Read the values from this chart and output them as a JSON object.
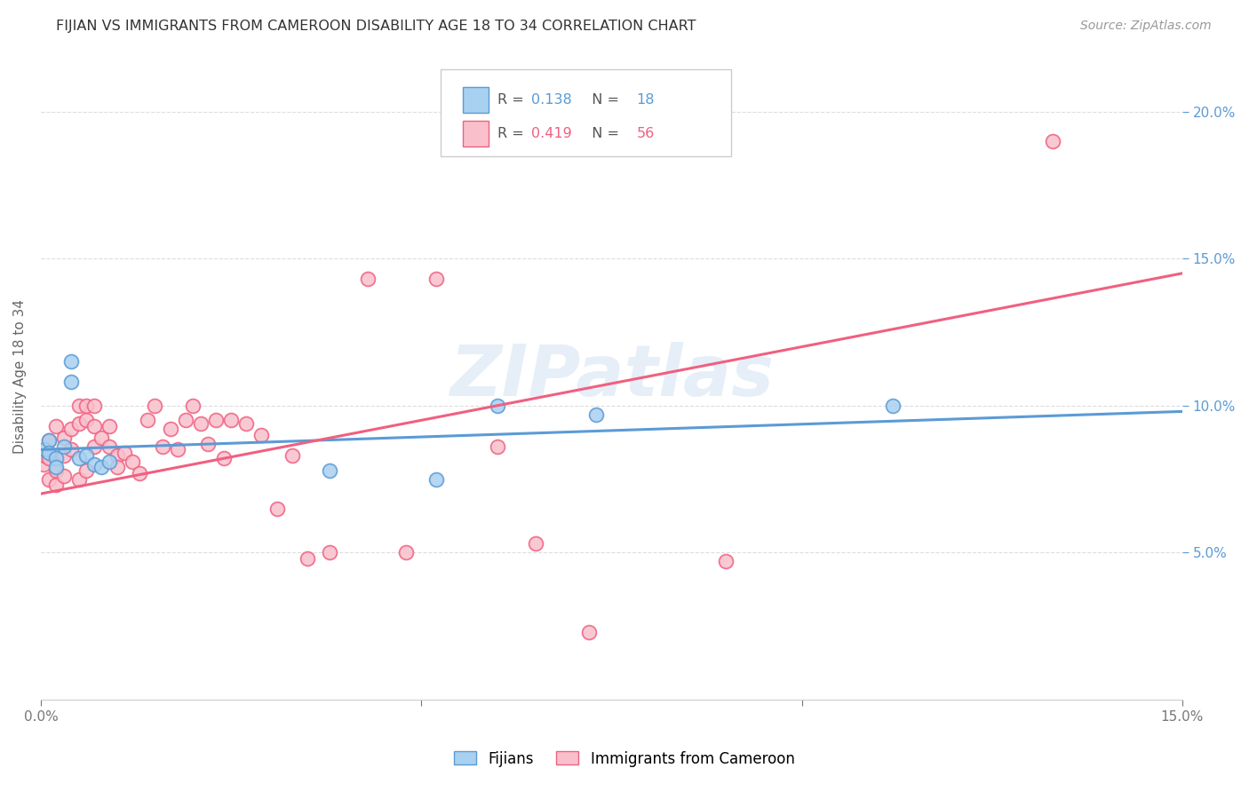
{
  "title": "FIJIAN VS IMMIGRANTS FROM CAMEROON DISABILITY AGE 18 TO 34 CORRELATION CHART",
  "source": "Source: ZipAtlas.com",
  "ylabel": "Disability Age 18 to 34",
  "xlim": [
    0.0,
    0.15
  ],
  "ylim": [
    0.0,
    0.22
  ],
  "color_fijian_fill": "#A8D0F0",
  "color_fijian_edge": "#5B9BD5",
  "color_cameroon_fill": "#F9C0CC",
  "color_cameroon_edge": "#F06080",
  "color_fijian_line": "#5B9BD5",
  "color_cameroon_line": "#F06080",
  "watermark": "ZIPatlas",
  "r_fijian": "0.138",
  "n_fijian": "18",
  "r_cameroon": "0.419",
  "n_cameroon": "56",
  "legend_fijian": "Fijians",
  "legend_cameroon": "Immigrants from Cameroon",
  "fijian_x": [
    0.0005,
    0.001,
    0.001,
    0.002,
    0.002,
    0.003,
    0.004,
    0.004,
    0.005,
    0.006,
    0.007,
    0.008,
    0.009,
    0.038,
    0.052,
    0.06,
    0.073,
    0.112
  ],
  "fijian_y": [
    0.085,
    0.088,
    0.084,
    0.082,
    0.079,
    0.086,
    0.115,
    0.108,
    0.082,
    0.083,
    0.08,
    0.079,
    0.081,
    0.078,
    0.075,
    0.1,
    0.097,
    0.1
  ],
  "cameroon_x": [
    0.0003,
    0.0005,
    0.001,
    0.001,
    0.001,
    0.002,
    0.002,
    0.002,
    0.003,
    0.003,
    0.003,
    0.004,
    0.004,
    0.005,
    0.005,
    0.005,
    0.006,
    0.006,
    0.006,
    0.007,
    0.007,
    0.007,
    0.008,
    0.009,
    0.009,
    0.01,
    0.01,
    0.011,
    0.012,
    0.013,
    0.014,
    0.015,
    0.016,
    0.017,
    0.018,
    0.019,
    0.02,
    0.021,
    0.022,
    0.023,
    0.024,
    0.025,
    0.027,
    0.029,
    0.031,
    0.033,
    0.035,
    0.038,
    0.043,
    0.048,
    0.052,
    0.06,
    0.065,
    0.072,
    0.09,
    0.133
  ],
  "cameroon_y": [
    0.08,
    0.083,
    0.088,
    0.082,
    0.075,
    0.093,
    0.078,
    0.073,
    0.089,
    0.083,
    0.076,
    0.092,
    0.085,
    0.1,
    0.094,
    0.075,
    0.1,
    0.095,
    0.078,
    0.1,
    0.093,
    0.086,
    0.089,
    0.093,
    0.086,
    0.083,
    0.079,
    0.084,
    0.081,
    0.077,
    0.095,
    0.1,
    0.086,
    0.092,
    0.085,
    0.095,
    0.1,
    0.094,
    0.087,
    0.095,
    0.082,
    0.095,
    0.094,
    0.09,
    0.065,
    0.083,
    0.048,
    0.05,
    0.143,
    0.05,
    0.143,
    0.086,
    0.053,
    0.023,
    0.047,
    0.19
  ]
}
